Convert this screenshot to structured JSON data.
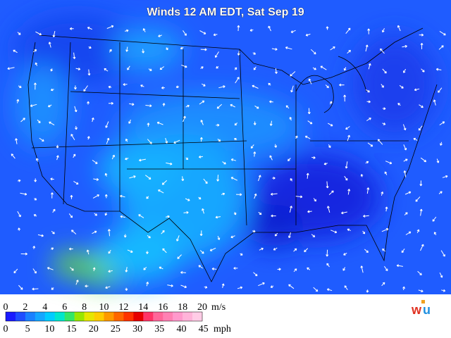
{
  "header": {
    "title": "Winds 12 AM EDT, Sat Sep 19"
  },
  "legend": {
    "ms_unit": "m/s",
    "ms_ticks": [
      0,
      2,
      4,
      6,
      8,
      10,
      12,
      14,
      16,
      18,
      20
    ],
    "mph_unit": "mph",
    "mph_ticks": [
      0,
      5,
      10,
      15,
      20,
      25,
      30,
      35,
      40,
      45
    ],
    "colors": [
      "#1a1aff",
      "#1f4dff",
      "#1a80ff",
      "#14a6ff",
      "#00ccff",
      "#00e6cc",
      "#33e666",
      "#99e600",
      "#e6e600",
      "#ffcc00",
      "#ff9900",
      "#ff6600",
      "#ff3300",
      "#e60000",
      "#ff3366",
      "#ff6699",
      "#ff80b3",
      "#ff99cc",
      "#ffb3d9",
      "#ffcce6"
    ]
  }
}
